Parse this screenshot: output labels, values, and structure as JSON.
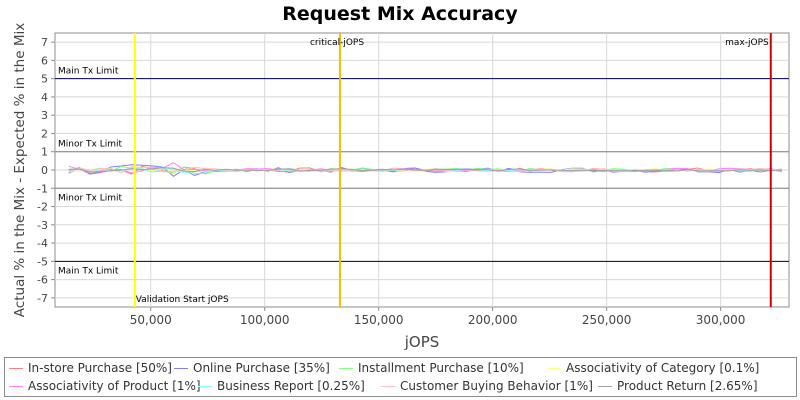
{
  "chart_data": {
    "type": "line",
    "title": "Request Mix Accuracy",
    "xlabel": "jOPS",
    "ylabel": "Actual % in the Mix - Expected % in the Mix",
    "xlim": [
      8000,
      330000
    ],
    "ylim": [
      -7.5,
      7.5
    ],
    "xticks": [
      50000,
      100000,
      150000,
      200000,
      250000,
      300000
    ],
    "xtick_labels": [
      "50,000",
      "100,000",
      "150,000",
      "200,000",
      "250,000",
      "300,000"
    ],
    "yticks": [
      -7,
      -6,
      -5,
      -4,
      -3,
      -2,
      -1,
      0,
      1,
      2,
      3,
      4,
      5,
      6,
      7
    ],
    "grid": true,
    "legend_position": "bottom",
    "reference_lines": [
      {
        "axis": "y",
        "value": 5,
        "label": "Main Tx Limit",
        "color": "#000066"
      },
      {
        "axis": "y",
        "value": -5,
        "label": "Main Tx Limit",
        "color": "#000066"
      },
      {
        "axis": "y",
        "value": 1,
        "label": "Minor Tx Limit",
        "color": "#808080"
      },
      {
        "axis": "y",
        "value": -1,
        "label": "Minor Tx Limit",
        "color": "#808080"
      }
    ],
    "markers": [
      {
        "axis": "x",
        "value": 43000,
        "label": "Validation Start jOPS",
        "color": "#ffff00",
        "label_pos": "bottom"
      },
      {
        "axis": "x",
        "value": 133000,
        "label": "critical-jOPS",
        "color": "#f0c000",
        "label_pos": "top"
      },
      {
        "axis": "x",
        "value": 322000,
        "label": "max-jOPS",
        "color": "#cc0000",
        "label_pos": "top"
      }
    ],
    "series": [
      {
        "name": "In-store Purchase [50%]",
        "color": "#ff8080"
      },
      {
        "name": "Online Purchase [35%]",
        "color": "#8080ff"
      },
      {
        "name": "Installment Purchase [10%]",
        "color": "#80ff80"
      },
      {
        "name": "Associativity of Category [0.1%]",
        "color": "#ffff80"
      },
      {
        "name": "Associativity of Product [1%]",
        "color": "#ff80ff"
      },
      {
        "name": "Business Report [0.25%]",
        "color": "#80ffff"
      },
      {
        "name": "Customer Buying Behavior [1%]",
        "color": "#ffc0c0"
      },
      {
        "name": "Product Return [2.65%]",
        "color": "#a0a0a0"
      }
    ]
  }
}
